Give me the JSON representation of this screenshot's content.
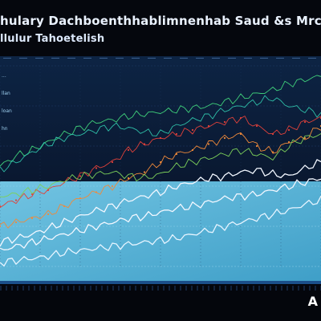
{
  "header": {
    "title": "hulary Dachboenthhablimnenhab Saud &s Mrcuinted",
    "subtitle": "llulur Tahoetelish"
  },
  "colors": {
    "background": "#05070d",
    "upper_panel": "#0b1f3d",
    "lower_panel": "#5fb4d8",
    "accent_red": "#e0413a",
    "accent_green": "#3fd07a",
    "accent_white": "#f2f7ff"
  },
  "footer": {
    "logo": "A"
  },
  "chart_data": {
    "type": "line",
    "title": "hulary Dachboenthhablimnenhab Saud &s Mrcuinted",
    "subtitle": "llulur Tahoetelish",
    "grid": true,
    "y_axis_labels": [
      "...",
      "llan",
      "loan",
      "hn"
    ],
    "ylim": [
      0,
      100
    ],
    "x": [
      0,
      5,
      10,
      15,
      20,
      25,
      30,
      35,
      40,
      45,
      50,
      55,
      60,
      65,
      70,
      75,
      80,
      85,
      90,
      95,
      100
    ],
    "series": [
      {
        "color": "#3fd07a",
        "values": [
          50,
          55,
          58,
          62,
          66,
          69,
          72,
          73,
          75,
          76,
          77,
          78,
          79,
          80,
          82,
          84,
          86,
          88,
          91,
          93,
          95
        ]
      },
      {
        "color": "#2fbfa8",
        "values": [
          48,
          52,
          57,
          61,
          64,
          66,
          68,
          70,
          69,
          67,
          66,
          70,
          73,
          75,
          78,
          80,
          82,
          84,
          80,
          78,
          76
        ]
      },
      {
        "color": "#e0413a",
        "values": [
          30,
          33,
          36,
          38,
          42,
          45,
          49,
          52,
          58,
          61,
          64,
          66,
          68,
          70,
          72,
          74,
          70,
          66,
          68,
          72,
          74
        ]
      },
      {
        "color": "#f08a3a",
        "values": [
          20,
          22,
          24,
          26,
          30,
          34,
          37,
          40,
          44,
          47,
          52,
          56,
          58,
          61,
          64,
          66,
          60,
          57,
          62,
          64,
          70
        ]
      },
      {
        "color": "#7dd15a",
        "values": [
          35,
          36,
          38,
          40,
          43,
          45,
          46,
          47,
          45,
          44,
          46,
          50,
          52,
          54,
          56,
          58,
          56,
          54,
          60,
          64,
          66
        ]
      },
      {
        "color": "#f2f7ff",
        "values": [
          12,
          14,
          16,
          19,
          22,
          25,
          28,
          30,
          33,
          35,
          37,
          40,
          42,
          44,
          45,
          47,
          48,
          46,
          45,
          49,
          52
        ]
      },
      {
        "color": "#f2f7ff",
        "values": [
          8,
          10,
          12,
          14,
          16,
          18,
          20,
          22,
          24,
          25,
          27,
          29,
          30,
          32,
          34,
          35,
          36,
          38,
          40,
          42,
          44
        ]
      },
      {
        "color": "#e6f4ff",
        "values": [
          2,
          3,
          4,
          5,
          7,
          8,
          9,
          10,
          11,
          12,
          13,
          14,
          16,
          18,
          20,
          22,
          24,
          26,
          28,
          31,
          33
        ]
      }
    ]
  }
}
